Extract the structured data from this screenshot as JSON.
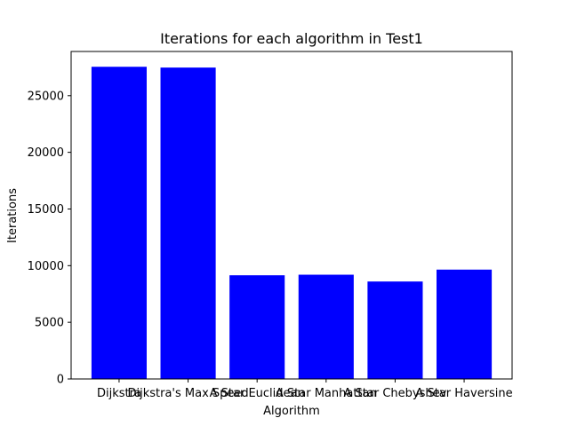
{
  "chart_data": {
    "type": "bar",
    "title": "Iterations for each algorithm in Test1",
    "xlabel": "Algorithm",
    "ylabel": "Iterations",
    "categories": [
      "Dijkstra",
      "Dijkstra's Max Speed",
      "A Star Euclidean",
      "A Star Manhattan",
      "A Star Chebyshev",
      "A Star Haversine"
    ],
    "values": [
      27550,
      27480,
      9150,
      9200,
      8600,
      9650
    ],
    "ylim": [
      0,
      28900
    ],
    "yticks": [
      0,
      5000,
      10000,
      15000,
      20000,
      25000
    ],
    "bar_color": "#0000ff",
    "grid": false,
    "legend": "none"
  }
}
